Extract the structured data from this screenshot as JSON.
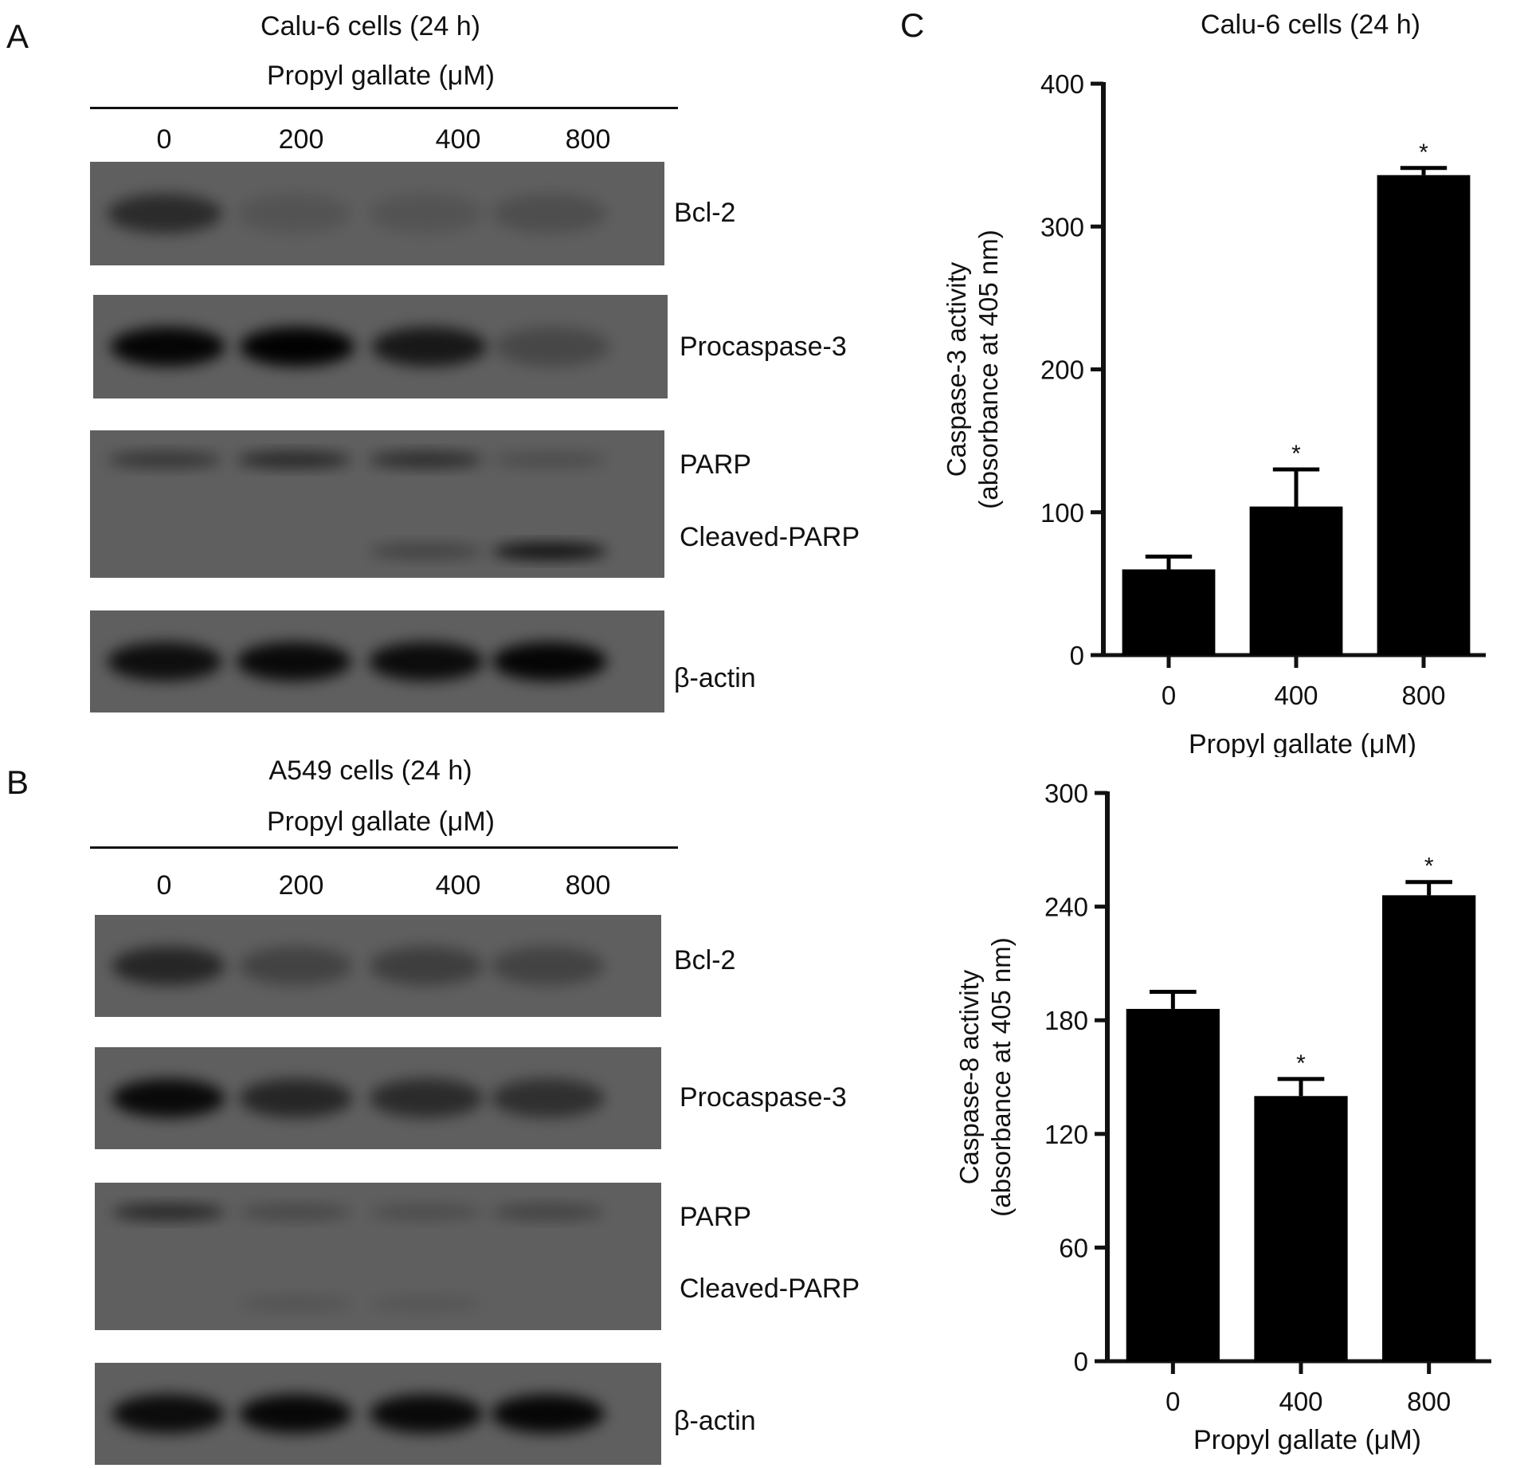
{
  "panels": {
    "A": {
      "letter": "A",
      "title": "Calu-6 cells (24 h)",
      "treatment": "Propyl gallate (μM)",
      "lanes": [
        "0",
        "200",
        "400",
        "800"
      ],
      "blots": [
        {
          "labels": [
            "Bcl-2"
          ],
          "bands": [
            [
              0.55,
              0.12,
              0.12,
              0.18
            ]
          ]
        },
        {
          "labels": [
            "Procaspase-3"
          ],
          "bands": [
            [
              0.95,
              0.98,
              0.75,
              0.25
            ]
          ]
        },
        {
          "labels": [
            "PARP",
            "Cleaved-PARP"
          ],
          "bands": [
            [
              0.45,
              0.6,
              0.55,
              0.2
            ],
            [
              0,
              0,
              0.3,
              0.85
            ]
          ]
        },
        {
          "labels": [
            "β-actin"
          ],
          "bands": [
            [
              0.85,
              0.9,
              0.88,
              0.95
            ]
          ]
        }
      ]
    },
    "B": {
      "letter": "B",
      "title": "A549 cells (24 h)",
      "treatment": "Propyl gallate (μM)",
      "lanes": [
        "0",
        "200",
        "400",
        "800"
      ],
      "blots": [
        {
          "labels": [
            "Bcl-2"
          ],
          "bands": [
            [
              0.6,
              0.3,
              0.35,
              0.3
            ]
          ]
        },
        {
          "labels": [
            "Procaspase-3"
          ],
          "bands": [
            [
              0.9,
              0.6,
              0.55,
              0.5
            ]
          ]
        },
        {
          "labels": [
            "PARP",
            "Cleaved-PARP"
          ],
          "bands": [
            [
              0.6,
              0.25,
              0.2,
              0.3
            ],
            [
              0,
              0.12,
              0.1,
              0
            ]
          ]
        },
        {
          "labels": [
            "β-actin"
          ],
          "bands": [
            [
              0.88,
              0.92,
              0.9,
              0.93
            ]
          ]
        }
      ]
    },
    "C": {
      "letter": "C"
    }
  },
  "chart_data": [
    {
      "type": "bar",
      "title": "Calu-6 cells (24 h)",
      "xlabel": "Propyl gallate (μM)",
      "ylabel": [
        "Caspase-3 activity",
        "(absorbance at 405 nm)"
      ],
      "categories": [
        "0",
        "400",
        "800"
      ],
      "values": [
        60,
        104,
        336
      ],
      "errors": [
        9,
        26,
        5
      ],
      "significance": [
        "",
        "*",
        "*"
      ],
      "ylim": [
        0,
        400
      ],
      "yticks": [
        0,
        100,
        200,
        300,
        400
      ],
      "color": "#000000"
    },
    {
      "type": "bar",
      "title": "",
      "xlabel": "Propyl gallate (μM)",
      "ylabel": [
        "Caspase-8 activity",
        "(absorbance at 405 nm)"
      ],
      "categories": [
        "0",
        "400",
        "800"
      ],
      "values": [
        186,
        140,
        246
      ],
      "errors": [
        9,
        9,
        7
      ],
      "significance": [
        "",
        "*",
        "*"
      ],
      "ylim": [
        0,
        300
      ],
      "yticks": [
        0,
        60,
        120,
        180,
        240,
        300
      ],
      "color": "#000000"
    }
  ]
}
